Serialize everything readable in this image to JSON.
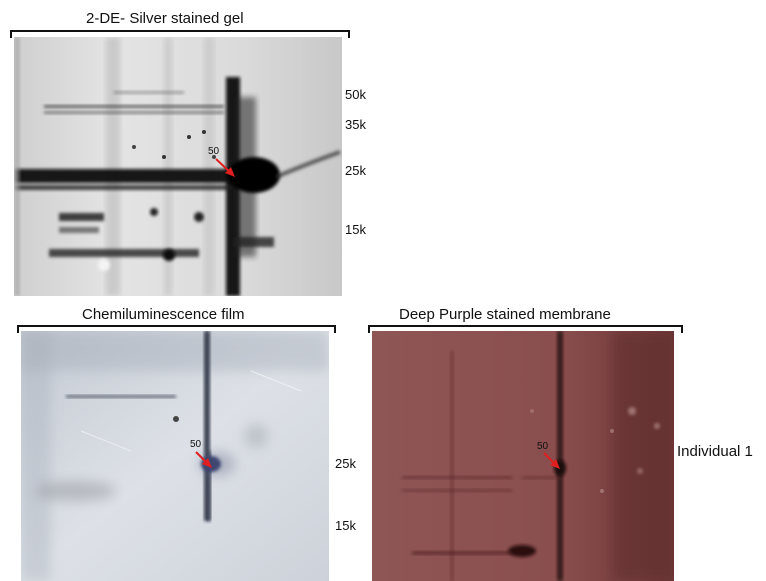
{
  "gel_panel": {
    "title": "2-DE- Silver stained gel",
    "spot_label": "50",
    "mw_markers": [
      "50k",
      "35k",
      "25k",
      "15k"
    ]
  },
  "film_panel": {
    "title": "Chemiluminescence film",
    "spot_label": "50"
  },
  "membrane_panel": {
    "title": "Deep Purple stained membrane",
    "spot_label": "50"
  },
  "lower_mw_markers": [
    "25k",
    "15k"
  ],
  "sample_label": "Individual 1",
  "colors": {
    "arrow": "#e02020",
    "membrane_tint": "#8a4c4c",
    "film_bg": "#cfd4dc",
    "gel_bg": "#d9d9d9"
  }
}
